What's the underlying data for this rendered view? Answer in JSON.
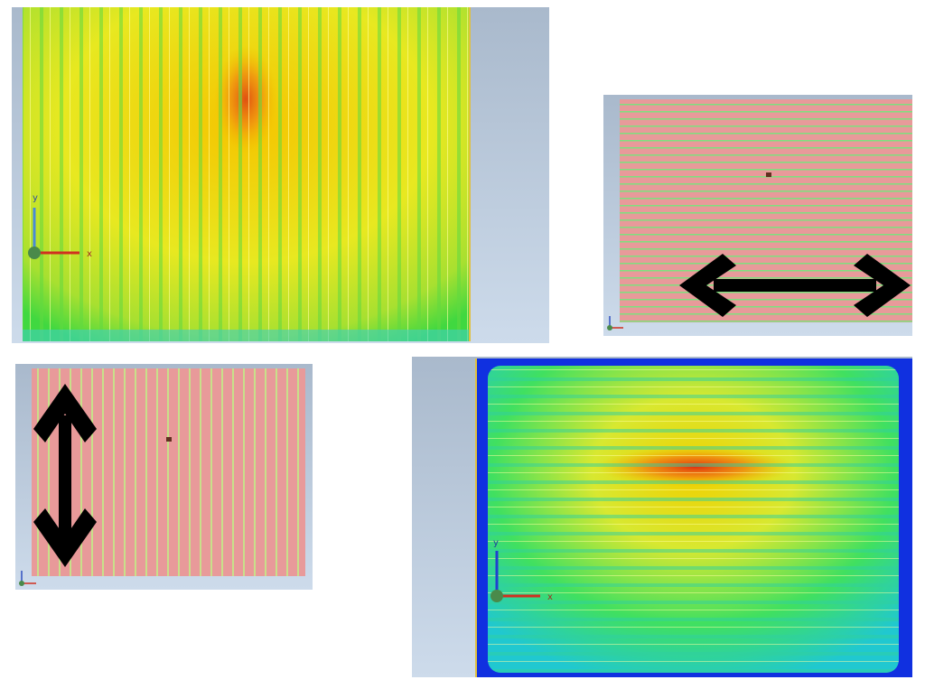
{
  "panels": [
    {
      "axis_labels": {
        "y": "y",
        "x": "x"
      }
    },
    {
      "axis_labels": {
        "y": "y",
        "x": "x"
      }
    }
  ]
}
